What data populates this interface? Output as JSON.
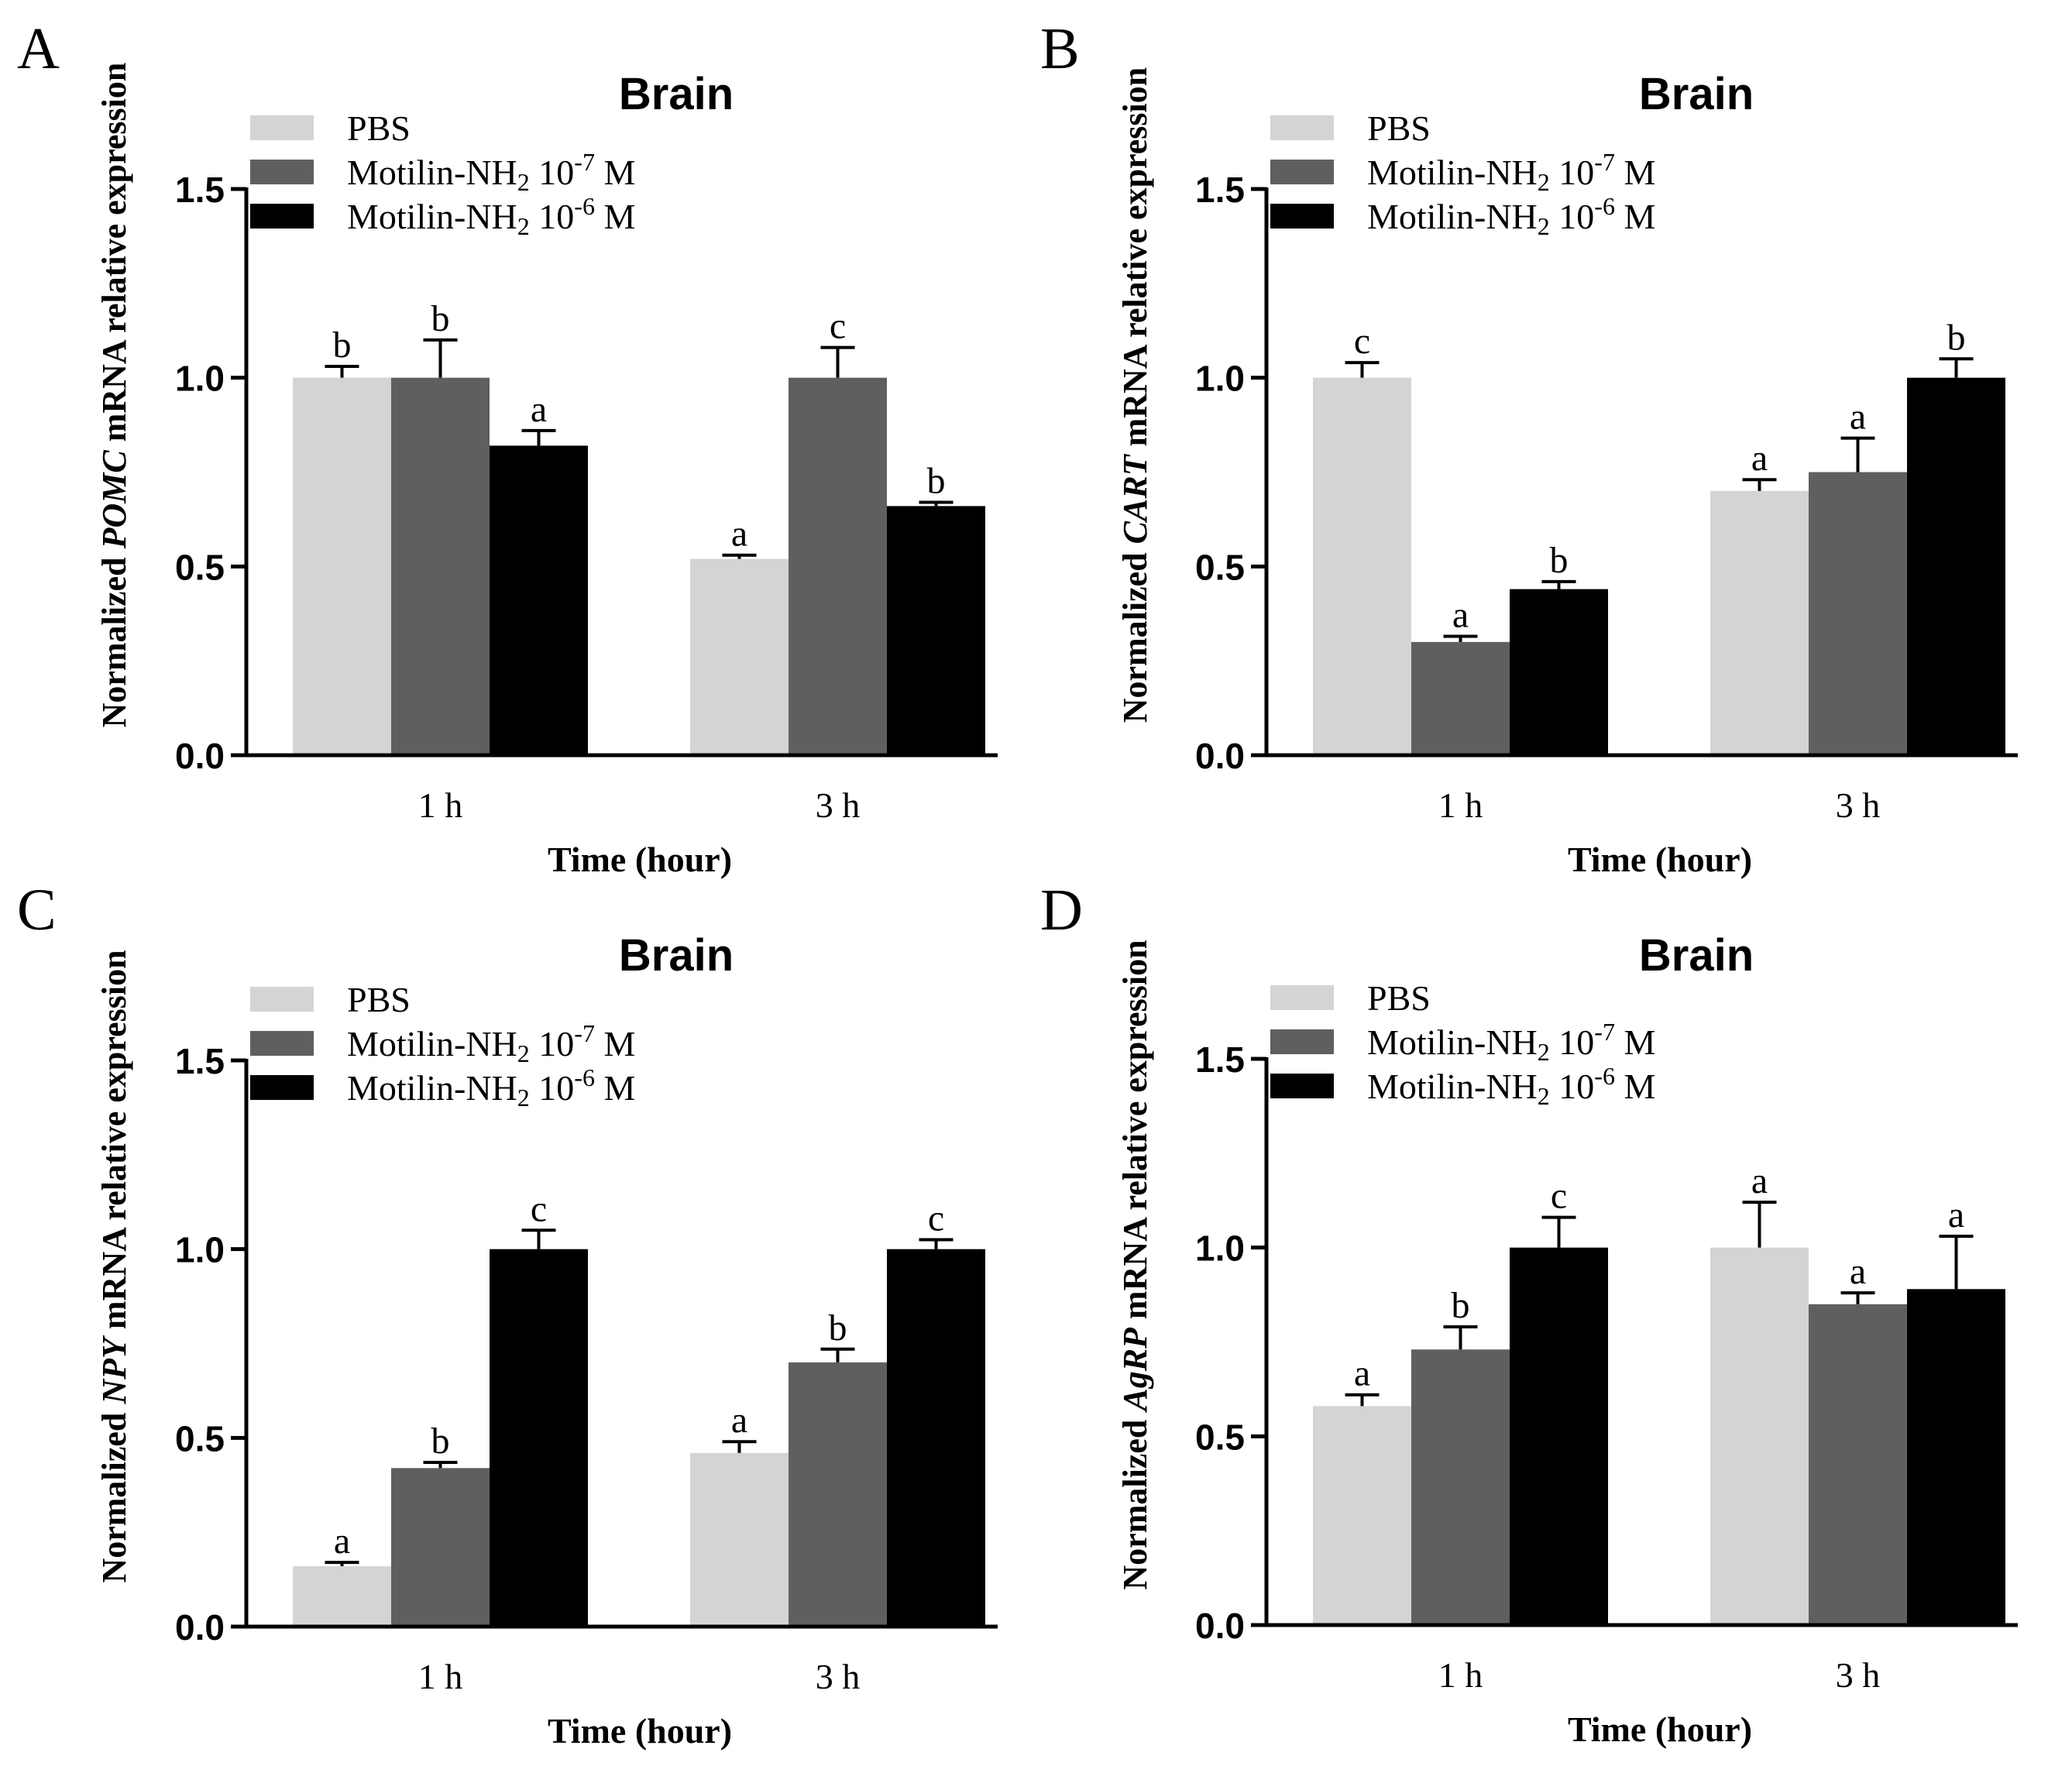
{
  "colors": {
    "PBS": "#d4d4d4",
    "Motilin-NH2 10-7 M": "#5f5f5f",
    "Motilin-NH2 10-6 M": "#000000",
    "axis": "#000000"
  },
  "chart_data": [
    {
      "panel_letter": "A",
      "type": "bar",
      "title": "Brain",
      "xlabel": "Time (hour)",
      "ylabel": {
        "prefix": "Normalized ",
        "gene": "POMC",
        "suffix": " mRNA relative expression"
      },
      "categories": [
        "1 h",
        "3 h"
      ],
      "ylim": [
        0,
        1.5
      ],
      "yticks": [
        "0.0",
        "0.5",
        "1.0",
        "1.5"
      ],
      "legend": [
        {
          "base": "PBS",
          "sub": "",
          "mid": "",
          "sup": "",
          "end": ""
        },
        {
          "base": "Motilin-NH",
          "sub": "2",
          "mid": " 10",
          "sup": "-7",
          "end": " M"
        },
        {
          "base": "Motilin-NH",
          "sub": "2",
          "mid": " 10",
          "sup": "-6",
          "end": " M"
        }
      ],
      "series": [
        {
          "name": "PBS",
          "values": [
            1.0,
            0.52
          ],
          "errors": [
            0.03,
            0.01
          ],
          "letters": [
            "b",
            "a"
          ]
        },
        {
          "name": "Motilin-NH2 10-7 M",
          "values": [
            1.0,
            1.0
          ],
          "errors": [
            0.1,
            0.08
          ],
          "letters": [
            "b",
            "c"
          ]
        },
        {
          "name": "Motilin-NH2 10-6 M",
          "values": [
            0.82,
            0.66
          ],
          "errors": [
            0.04,
            0.01
          ],
          "letters": [
            "a",
            "b"
          ]
        }
      ]
    },
    {
      "panel_letter": "B",
      "type": "bar",
      "title": "Brain",
      "xlabel": "Time (hour)",
      "ylabel": {
        "prefix": "Normalized ",
        "gene": "CART",
        "suffix": " mRNA relative expression"
      },
      "categories": [
        "1 h",
        "3 h"
      ],
      "ylim": [
        0,
        1.5
      ],
      "yticks": [
        "0.0",
        "0.5",
        "1.0",
        "1.5"
      ],
      "legend": [
        {
          "base": "PBS",
          "sub": "",
          "mid": "",
          "sup": "",
          "end": ""
        },
        {
          "base": "Motilin-NH",
          "sub": "2",
          "mid": " 10",
          "sup": "-7",
          "end": " M"
        },
        {
          "base": "Motilin-NH",
          "sub": "2",
          "mid": " 10",
          "sup": "-6",
          "end": " M"
        }
      ],
      "series": [
        {
          "name": "PBS",
          "values": [
            1.0,
            0.7
          ],
          "errors": [
            0.04,
            0.03
          ],
          "letters": [
            "c",
            "a"
          ]
        },
        {
          "name": "Motilin-NH2 10-7 M",
          "values": [
            0.3,
            0.75
          ],
          "errors": [
            0.015,
            0.09
          ],
          "letters": [
            "a",
            "a"
          ]
        },
        {
          "name": "Motilin-NH2 10-6 M",
          "values": [
            0.44,
            1.0
          ],
          "errors": [
            0.02,
            0.05
          ],
          "letters": [
            "b",
            "b"
          ]
        }
      ]
    },
    {
      "panel_letter": "C",
      "type": "bar",
      "title": "Brain",
      "xlabel": "Time (hour)",
      "ylabel": {
        "prefix": "Normalized ",
        "gene": "NPY",
        "suffix": " mRNA relative expression"
      },
      "categories": [
        "1 h",
        "3 h"
      ],
      "ylim": [
        0,
        1.5
      ],
      "yticks": [
        "0.0",
        "0.5",
        "1.0",
        "1.5"
      ],
      "legend": [
        {
          "base": "PBS",
          "sub": "",
          "mid": "",
          "sup": "",
          "end": ""
        },
        {
          "base": "Motilin-NH",
          "sub": "2",
          "mid": " 10",
          "sup": "-7",
          "end": " M"
        },
        {
          "base": "Motilin-NH",
          "sub": "2",
          "mid": " 10",
          "sup": "-6",
          "end": " M"
        }
      ],
      "series": [
        {
          "name": "PBS",
          "values": [
            0.16,
            0.46
          ],
          "errors": [
            0.01,
            0.03
          ],
          "letters": [
            "a",
            "a"
          ]
        },
        {
          "name": "Motilin-NH2 10-7 M",
          "values": [
            0.42,
            0.7
          ],
          "errors": [
            0.015,
            0.035
          ],
          "letters": [
            "b",
            "b"
          ]
        },
        {
          "name": "Motilin-NH2 10-6 M",
          "values": [
            1.0,
            1.0
          ],
          "errors": [
            0.05,
            0.025
          ],
          "letters": [
            "c",
            "c"
          ]
        }
      ]
    },
    {
      "panel_letter": "D",
      "type": "bar",
      "title": "Brain",
      "xlabel": "Time (hour)",
      "ylabel": {
        "prefix": "Normalized ",
        "gene": "AgRP",
        "suffix": " mRNA relative expression"
      },
      "categories": [
        "1 h",
        "3 h"
      ],
      "ylim": [
        0,
        1.5
      ],
      "yticks": [
        "0.0",
        "0.5",
        "1.0",
        "1.5"
      ],
      "legend": [
        {
          "base": "PBS",
          "sub": "",
          "mid": "",
          "sup": "",
          "end": ""
        },
        {
          "base": "Motilin-NH",
          "sub": "2",
          "mid": " 10",
          "sup": "-7",
          "end": " M"
        },
        {
          "base": "Motilin-NH",
          "sub": "2",
          "mid": " 10",
          "sup": "-6",
          "end": " M"
        }
      ],
      "series": [
        {
          "name": "PBS",
          "values": [
            0.58,
            1.0
          ],
          "errors": [
            0.03,
            0.12
          ],
          "letters": [
            "a",
            "a"
          ]
        },
        {
          "name": "Motilin-NH2 10-7 M",
          "values": [
            0.73,
            0.85
          ],
          "errors": [
            0.06,
            0.03
          ],
          "letters": [
            "b",
            "a"
          ]
        },
        {
          "name": "Motilin-NH2 10-6 M",
          "values": [
            1.0,
            0.89
          ],
          "errors": [
            0.08,
            0.14
          ],
          "letters": [
            "c",
            "a"
          ]
        }
      ]
    }
  ]
}
